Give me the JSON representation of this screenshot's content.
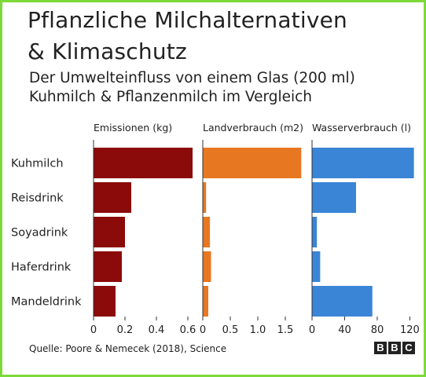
{
  "title": "Pflanzliche Milchalternativen\n& Klimaschutz",
  "subtitle": "Der Umwelteinfluss von einem Glas (200 ml)\nKuhmilch & Pflanzenmilch im Vergleich",
  "source": "Quelle: Poore & Nemecek (2018), Science",
  "logo": "BBC",
  "chart_data": [
    {
      "type": "bar",
      "orientation": "horizontal",
      "title": "Emissionen (kg)",
      "categories": [
        "Kuhmilch",
        "Reisdrink",
        "Soyadrink",
        "Haferdrink",
        "Mandeldrink"
      ],
      "values": [
        0.63,
        0.24,
        0.2,
        0.18,
        0.14
      ],
      "xlim": [
        0,
        0.7
      ],
      "ticks": [
        0,
        0.2,
        0.4,
        0.6
      ],
      "tick_labels": [
        "0",
        "0.2",
        "0.4",
        "0.6"
      ],
      "color": "#8b0a0a",
      "grid": false
    },
    {
      "type": "bar",
      "orientation": "horizontal",
      "title": "Landverbrauch (m2)",
      "categories": [
        "Kuhmilch",
        "Reisdrink",
        "Soyadrink",
        "Haferdrink",
        "Mandeldrink"
      ],
      "values": [
        1.79,
        0.06,
        0.13,
        0.15,
        0.1
      ],
      "xlim": [
        0,
        2.0
      ],
      "ticks": [
        0,
        0.5,
        1.0,
        1.5
      ],
      "tick_labels": [
        "0",
        "0.5",
        "1.0",
        "1.5"
      ],
      "color": "#e87722",
      "grid": false
    },
    {
      "type": "bar",
      "orientation": "horizontal",
      "title": "Wasserverbrauch (l)",
      "categories": [
        "Kuhmilch",
        "Reisdrink",
        "Soyadrink",
        "Haferdrink",
        "Mandeldrink"
      ],
      "values": [
        125,
        54,
        6,
        10,
        74
      ],
      "xlim": [
        0,
        135
      ],
      "ticks": [
        0,
        40,
        80,
        120
      ],
      "tick_labels": [
        "0",
        "40",
        "80",
        "120"
      ],
      "color": "#3a85d6",
      "grid": false
    }
  ]
}
